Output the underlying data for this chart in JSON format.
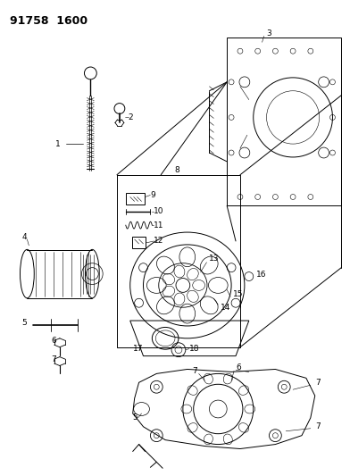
{
  "title_code": "91758 1600",
  "bg_color": "#ffffff",
  "lc": "#000000",
  "fig_width": 3.92,
  "fig_height": 5.33,
  "dpi": 100
}
